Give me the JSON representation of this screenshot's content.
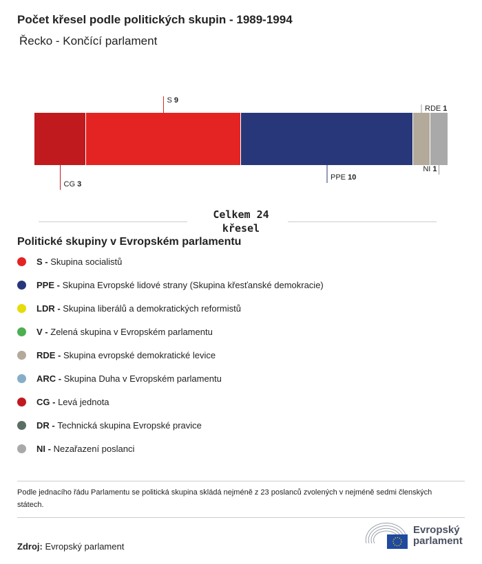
{
  "title": "Počet křesel podle politických skupin - 1989-1994",
  "subtitle": "Řecko - Končící parlament",
  "chart_data": {
    "type": "bar",
    "stacked": true,
    "orientation": "horizontal",
    "categories": [
      "CG",
      "S",
      "PPE",
      "RDE",
      "NI"
    ],
    "values": [
      3,
      9,
      10,
      1,
      1
    ],
    "colors": [
      "#c01a1e",
      "#e32422",
      "#283779",
      "#b3aa9b",
      "#a9a9a9"
    ],
    "total_label": [
      "Celkem 24",
      "křesel"
    ]
  },
  "legend": {
    "title": "Politické skupiny v Evropském parlamentu",
    "items": [
      {
        "abbr": "S -",
        "name": "Skupina socialistů",
        "color": "#e32422"
      },
      {
        "abbr": "PPE -",
        "name": "Skupina Evropské lidové strany (Skupina křesťanské demokracie)",
        "color": "#283779"
      },
      {
        "abbr": "LDR -",
        "name": "Skupina liberálů a demokratických reformistů",
        "color": "#e6dc0a"
      },
      {
        "abbr": "V -",
        "name": "Zelená skupina v Evropském parlamentu",
        "color": "#4caf50"
      },
      {
        "abbr": "RDE -",
        "name": "Skupina evropské demokratické levice",
        "color": "#b3aa9b"
      },
      {
        "abbr": "ARC -",
        "name": "Skupina Duha v Evropském parlamentu",
        "color": "#86aec9"
      },
      {
        "abbr": "CG -",
        "name": "Levá jednota",
        "color": "#c01a1e"
      },
      {
        "abbr": "DR -",
        "name": "Technická skupina Evropské pravice",
        "color": "#5a6e64"
      },
      {
        "abbr": "NI -",
        "name": "Nezařazení poslanci",
        "color": "#a9a9a9"
      }
    ]
  },
  "note": "Podle jednacího řádu Parlamentu se politická skupina skládá nejméně z 23 poslanců zvolených v nejméně sedmi členských státech.",
  "source": {
    "label": "Zdroj:",
    "value": "Evropský parlament"
  },
  "logo": {
    "line1": "Evropský",
    "line2": "parlament"
  }
}
